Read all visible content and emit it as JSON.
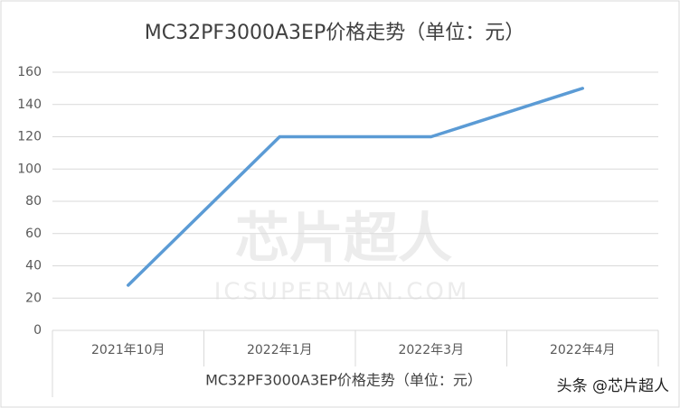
{
  "chart_data": {
    "type": "line",
    "title": "MC32PF3000A3EP价格走势（单位：元）",
    "x_label": "MC32PF3000A3EP价格走势（单位：元）",
    "categories": [
      "2021年10月",
      "2022年1月",
      "2022年3月",
      "2022年4月"
    ],
    "series": [
      {
        "name": "MC32PF3000A3EP",
        "color": "#5b9bd5",
        "values": [
          28,
          120,
          120,
          150
        ]
      }
    ],
    "ylim": [
      0,
      160
    ],
    "yticks": [
      0,
      20,
      40,
      60,
      80,
      100,
      120,
      140,
      160
    ],
    "grid": true,
    "watermark": [
      "芯片超人",
      "ICSUPERMAN.COM"
    ],
    "source": "头条 @芯片超人"
  }
}
